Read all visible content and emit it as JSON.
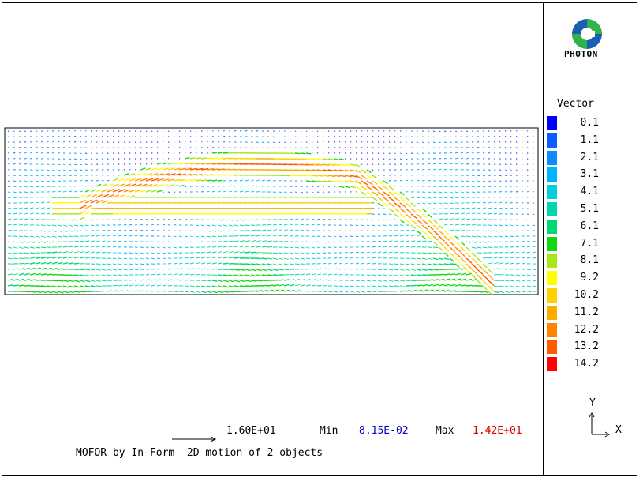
{
  "brand": {
    "name": "PHOTON",
    "logo_icon": "photon-logo-icon"
  },
  "legend": {
    "title": "Vector",
    "items": [
      {
        "label": "0.1",
        "color": "#0000ff"
      },
      {
        "label": "1.1",
        "color": "#0a5eff"
      },
      {
        "label": "2.1",
        "color": "#0e8cff"
      },
      {
        "label": "3.1",
        "color": "#00b4ff"
      },
      {
        "label": "4.1",
        "color": "#00cde0"
      },
      {
        "label": "5.1",
        "color": "#00d6b0"
      },
      {
        "label": "6.1",
        "color": "#00d873"
      },
      {
        "label": "7.1",
        "color": "#12d812"
      },
      {
        "label": "8.1",
        "color": "#a8e614"
      },
      {
        "label": "9.2",
        "color": "#ffff00"
      },
      {
        "label": "10.2",
        "color": "#ffd200"
      },
      {
        "label": "11.2",
        "color": "#ffac00"
      },
      {
        "label": "12.2",
        "color": "#ff8200"
      },
      {
        "label": "13.2",
        "color": "#ff5a00"
      },
      {
        "label": "14.2",
        "color": "#ff0000"
      }
    ]
  },
  "axes": {
    "y_label": "Y",
    "x_label": "X"
  },
  "scale": {
    "value": "1.60E+01"
  },
  "range": {
    "min_label": "Min",
    "min_value": "8.15E-02",
    "max_label": "Max",
    "max_value": "1.42E+01"
  },
  "footer": {
    "text": "MOFOR by In-Form  2D motion of 2 objects"
  }
}
